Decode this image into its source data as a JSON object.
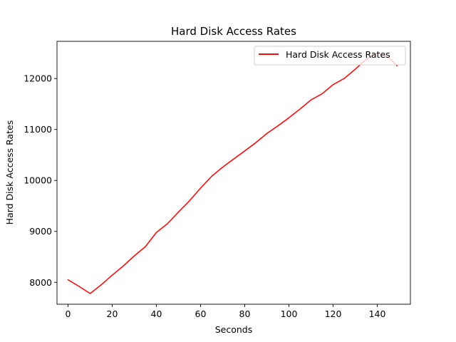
{
  "chart_data": {
    "type": "line",
    "title": "Hard Disk Access Rates",
    "xlabel": "Seconds",
    "ylabel": "Hard Disk Access Rates",
    "xlim": [
      -5,
      155
    ],
    "ylim": [
      7570,
      12730
    ],
    "xticks": [
      0,
      20,
      40,
      60,
      80,
      100,
      120,
      140
    ],
    "yticks": [
      8000,
      9000,
      10000,
      11000,
      12000
    ],
    "grid": false,
    "legend_position": "top-right",
    "series": [
      {
        "name": "Hard Disk Access Rates",
        "color": "#ee1111",
        "x": [
          0,
          5,
          10,
          15,
          20,
          25,
          30,
          35,
          40,
          45,
          50,
          55,
          60,
          65,
          70,
          75,
          80,
          85,
          90,
          95,
          100,
          105,
          110,
          115,
          120,
          125,
          130,
          135,
          140,
          145,
          149
        ],
        "y": [
          8050,
          7920,
          7780,
          7950,
          8140,
          8320,
          8520,
          8700,
          8980,
          9150,
          9380,
          9600,
          9850,
          10080,
          10260,
          10420,
          10580,
          10740,
          10920,
          11070,
          11230,
          11400,
          11580,
          11700,
          11880,
          12000,
          12180,
          12380,
          12500,
          12420,
          12250
        ]
      }
    ]
  }
}
